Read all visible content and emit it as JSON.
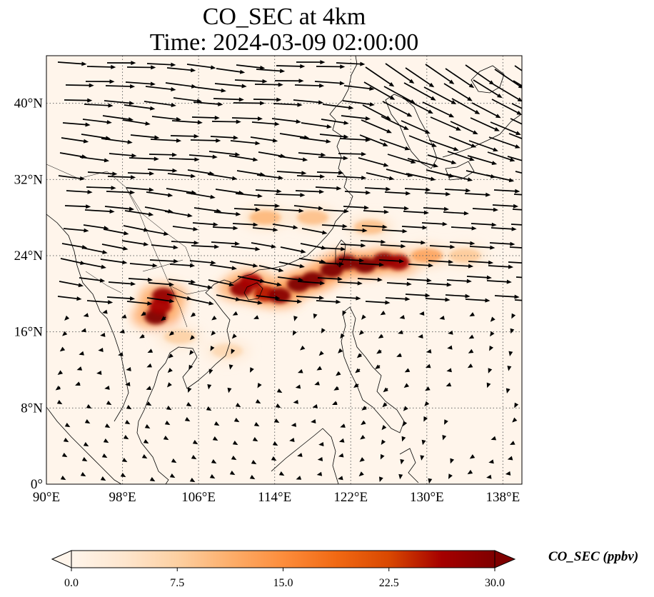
{
  "title": "CO_SEC at 4km",
  "subtitle": "Time: 2024-03-09 02:00:00",
  "map": {
    "lon_range": [
      90,
      140
    ],
    "lat_range": [
      0,
      45
    ],
    "x_ticks": [
      "90°E",
      "98°E",
      "106°E",
      "114°E",
      "122°E",
      "130°E",
      "138°E"
    ],
    "y_ticks": [
      "0°",
      "8°N",
      "16°N",
      "24°N",
      "32°N",
      "40°N"
    ],
    "gridlines": "dotted"
  },
  "colorbar": {
    "label": "CO_SEC (ppbv)",
    "ticks": [
      "0.0",
      "7.5",
      "15.0",
      "22.5",
      "30.0"
    ],
    "range": [
      0,
      30
    ],
    "colors": [
      "#fff5eb",
      "#fee6ce",
      "#fdd0a2",
      "#fdae6b",
      "#fd8d3c",
      "#f16913",
      "#d94801",
      "#a50000",
      "#7f0000"
    ],
    "extend": "both"
  },
  "plume": [
    {
      "lon": 101.5,
      "lat": 17.6,
      "value": 30
    },
    {
      "lon": 102.3,
      "lat": 19.8,
      "value": 28
    },
    {
      "lon": 102.0,
      "lat": 18.7,
      "value": 26
    },
    {
      "lon": 110.5,
      "lat": 20.5,
      "value": 28
    },
    {
      "lon": 111.5,
      "lat": 21.3,
      "value": 26
    },
    {
      "lon": 113.0,
      "lat": 20.0,
      "value": 25
    },
    {
      "lon": 114.5,
      "lat": 19.8,
      "value": 29
    },
    {
      "lon": 116.5,
      "lat": 21.0,
      "value": 30
    },
    {
      "lon": 118.0,
      "lat": 21.5,
      "value": 30
    },
    {
      "lon": 120.0,
      "lat": 22.5,
      "value": 30
    },
    {
      "lon": 121.5,
      "lat": 23.3,
      "value": 30
    },
    {
      "lon": 123.5,
      "lat": 23.0,
      "value": 30
    },
    {
      "lon": 125.5,
      "lat": 23.5,
      "value": 29
    },
    {
      "lon": 127.0,
      "lat": 23.3,
      "value": 27
    },
    {
      "lon": 113.0,
      "lat": 28.0,
      "value": 10
    },
    {
      "lon": 118.0,
      "lat": 28.0,
      "value": 9
    },
    {
      "lon": 124.0,
      "lat": 27.0,
      "value": 9
    },
    {
      "lon": 130.0,
      "lat": 24.0,
      "value": 12
    },
    {
      "lon": 134.0,
      "lat": 24.0,
      "value": 8
    },
    {
      "lon": 104.0,
      "lat": 15.5,
      "value": 7
    },
    {
      "lon": 109.0,
      "lat": 14.0,
      "value": 6
    }
  ]
}
